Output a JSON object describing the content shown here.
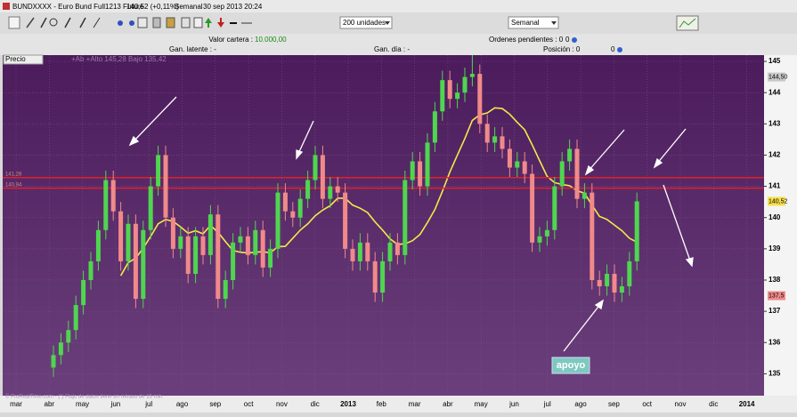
{
  "window": {
    "title": "BUNDXXXX - Euro Bund Full1213 Future",
    "quote": "140,52 (+0,11%)",
    "period": "Semanal",
    "datetime": "30 sep 2013 20:24"
  },
  "toolbar": {
    "units": "200 unidades",
    "timeframe": "Semanal"
  },
  "info": {
    "portfolio_label": "Valor cartera :",
    "portfolio_value": "10.000,00",
    "pending_label": "Ordenes pendientes : 0",
    "pending_value": "0",
    "latent_label": "Gan. latente : -",
    "day_label": "Gan. día : -",
    "position_label": "Posición : 0",
    "position_value": "0"
  },
  "chart_data": {
    "type": "candlestick",
    "title": "Precio",
    "legend_text": "+Ab +Alto 145,28 Bajo 135,42",
    "footer": "© ProRealTime.com - (*) Flujo de datos tiene un retraso de 15 min",
    "annotation": "apoyo",
    "x_labels": [
      "mar",
      "abr",
      "may",
      "jun",
      "jul",
      "ago",
      "sep",
      "oct",
      "nov",
      "dic",
      "2013",
      "feb",
      "mar",
      "abr",
      "may",
      "jun",
      "jul",
      "ago",
      "sep",
      "oct",
      "nov",
      "dic",
      "2014"
    ],
    "ylim": [
      134.3,
      145.2
    ],
    "yticks": [
      135,
      136,
      137,
      138,
      139,
      140,
      141,
      142,
      143,
      144,
      145
    ],
    "up_color": "#4fd64f",
    "down_color": "#f08a8a",
    "open": [
      135.2,
      135.6,
      136.0,
      136.4,
      137.2,
      138.0,
      138.6,
      139.6,
      141.2,
      140.2,
      138.6,
      139.8,
      137.4,
      139.6,
      141.0,
      142.0,
      140.0,
      139.0,
      139.4,
      138.2,
      139.4,
      138.8,
      140.1,
      137.4,
      138.0,
      139.2,
      139.4,
      138.8,
      139.6,
      138.4,
      139.0,
      140.8,
      140.2,
      140.0,
      140.6,
      141.2,
      142.0,
      140.6,
      141.0,
      140.8,
      139.0,
      138.6,
      139.2,
      138.6,
      137.6,
      138.6,
      139.2,
      138.8,
      141.2,
      141.8,
      141.0,
      142.4,
      143.4,
      144.4,
      143.8,
      144.0,
      144.5,
      144.6,
      143.0,
      142.4,
      142.6,
      142.2,
      141.6,
      141.8,
      141.4,
      139.2,
      139.4,
      139.6,
      141.0,
      141.8,
      142.2,
      140.6,
      140.8,
      138.0,
      137.8,
      138.2,
      137.6,
      137.8,
      138.6
    ],
    "high": [
      135.9,
      136.3,
      136.7,
      137.5,
      138.3,
      138.9,
      139.9,
      141.5,
      141.5,
      140.5,
      140.1,
      140.1,
      139.9,
      141.3,
      142.3,
      142.3,
      140.3,
      139.7,
      139.7,
      139.7,
      139.7,
      140.4,
      140.4,
      138.3,
      139.5,
      139.7,
      139.7,
      139.9,
      139.9,
      139.3,
      141.1,
      141.1,
      140.5,
      140.9,
      141.5,
      142.3,
      142.3,
      141.3,
      141.3,
      141.1,
      139.3,
      139.5,
      139.5,
      138.9,
      138.9,
      139.5,
      139.5,
      141.5,
      142.1,
      142.1,
      142.7,
      143.7,
      144.7,
      144.7,
      144.3,
      144.8,
      145.2,
      144.9,
      143.3,
      142.9,
      142.9,
      142.5,
      142.1,
      142.1,
      141.7,
      139.7,
      139.9,
      141.3,
      142.1,
      142.5,
      142.5,
      141.1,
      141.1,
      138.3,
      138.5,
      138.5,
      138.1,
      138.9,
      140.8
    ],
    "low": [
      134.9,
      135.3,
      135.7,
      136.1,
      136.9,
      137.7,
      138.3,
      139.3,
      139.9,
      138.3,
      138.3,
      137.1,
      137.1,
      139.3,
      140.7,
      139.7,
      138.7,
      138.7,
      137.9,
      137.9,
      138.5,
      138.5,
      137.1,
      137.1,
      137.7,
      138.9,
      138.5,
      138.5,
      138.1,
      138.1,
      138.7,
      139.9,
      139.7,
      139.7,
      140.3,
      140.9,
      140.3,
      140.3,
      140.5,
      138.7,
      138.3,
      138.3,
      138.3,
      137.3,
      137.3,
      138.3,
      138.5,
      138.5,
      140.9,
      140.7,
      140.7,
      142.1,
      143.1,
      143.5,
      143.5,
      143.7,
      144.2,
      142.7,
      142.1,
      142.1,
      141.9,
      141.3,
      141.3,
      141.1,
      138.9,
      138.9,
      139.1,
      139.3,
      140.7,
      141.5,
      140.3,
      140.3,
      137.7,
      137.5,
      137.5,
      137.3,
      137.3,
      137.5,
      138.3
    ],
    "close": [
      135.6,
      136.0,
      136.4,
      137.2,
      138.0,
      138.6,
      139.6,
      141.2,
      140.2,
      138.6,
      139.8,
      137.4,
      139.6,
      141.0,
      142.0,
      140.0,
      139.0,
      139.4,
      138.2,
      139.4,
      138.8,
      140.1,
      137.4,
      138.0,
      139.2,
      139.4,
      138.8,
      139.6,
      138.4,
      139.0,
      140.8,
      140.2,
      140.0,
      140.6,
      141.2,
      142.0,
      140.6,
      141.0,
      140.8,
      139.0,
      138.6,
      139.2,
      138.6,
      137.6,
      138.6,
      139.2,
      138.8,
      141.2,
      141.8,
      141.0,
      142.4,
      143.4,
      144.4,
      143.8,
      144.0,
      144.5,
      144.6,
      143.0,
      142.4,
      142.6,
      142.2,
      141.6,
      141.8,
      141.4,
      139.2,
      139.4,
      139.6,
      141.0,
      141.8,
      142.2,
      140.6,
      140.8,
      138.0,
      137.8,
      138.2,
      137.6,
      137.8,
      138.6,
      140.52
    ],
    "levels": [
      {
        "value": 141.28,
        "label": "141,28",
        "color": "#e0202a"
      },
      {
        "value": 140.94,
        "label": "140,94",
        "color": "#e0202a"
      }
    ],
    "price_tags": [
      {
        "value": 144.5,
        "label": "144,50",
        "color": "#c8c8c8"
      },
      {
        "value": 140.52,
        "label": "140,52",
        "color": "#f5e04a"
      },
      {
        "value": 137.5,
        "label": "137,5",
        "color": "#f08a8a"
      }
    ]
  }
}
